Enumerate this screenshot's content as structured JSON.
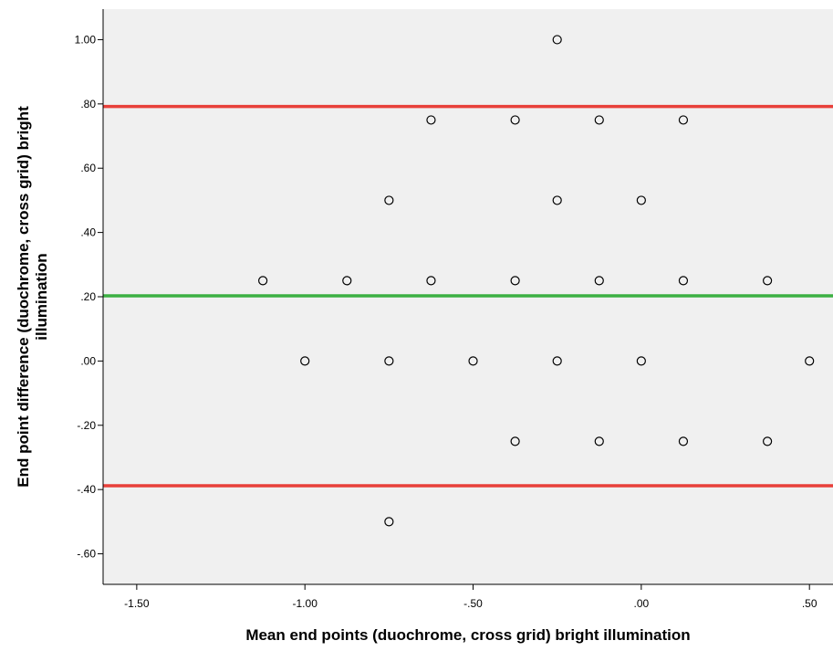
{
  "chart_data": {
    "type": "scatter",
    "title": "",
    "xlabel": "Mean end points (duochrome, cross grid) bright illumination",
    "ylabel_lines": [
      "End point difference (duochrome, cross grid) bright",
      "illumination"
    ],
    "xlim": [
      -1.6,
      0.57
    ],
    "ylim": [
      -0.695,
      1.095
    ],
    "x_ticks": [
      -1.5,
      -1.0,
      -0.5,
      0.0,
      0.5
    ],
    "x_tick_labels": [
      "-1.50",
      "-1.00",
      "-.50",
      ".00",
      ".50"
    ],
    "y_ticks": [
      1.0,
      0.8,
      0.6,
      0.4,
      0.2,
      0.0,
      -0.2,
      -0.4,
      -0.6
    ],
    "y_tick_labels": [
      "1.00",
      ".80",
      ".60",
      ".40",
      ".20",
      ".00",
      "-.20",
      "-.40",
      "-.60"
    ],
    "grid": false,
    "reference_lines": [
      {
        "y": 0.792,
        "color": "#e8403a"
      },
      {
        "y": 0.203,
        "color": "#3cb043"
      },
      {
        "y": -0.388,
        "color": "#e8403a"
      }
    ],
    "points": [
      {
        "x": -0.25,
        "y": 1.0
      },
      {
        "x": -0.625,
        "y": 0.75
      },
      {
        "x": -0.375,
        "y": 0.75
      },
      {
        "x": -0.125,
        "y": 0.75
      },
      {
        "x": 0.125,
        "y": 0.75
      },
      {
        "x": -0.75,
        "y": 0.5
      },
      {
        "x": -0.25,
        "y": 0.5
      },
      {
        "x": 0.0,
        "y": 0.5
      },
      {
        "x": -1.125,
        "y": 0.25
      },
      {
        "x": -0.875,
        "y": 0.25
      },
      {
        "x": -0.625,
        "y": 0.25
      },
      {
        "x": -0.375,
        "y": 0.25
      },
      {
        "x": -0.125,
        "y": 0.25
      },
      {
        "x": 0.125,
        "y": 0.25
      },
      {
        "x": 0.375,
        "y": 0.25
      },
      {
        "x": -1.0,
        "y": 0.0
      },
      {
        "x": -0.75,
        "y": 0.0
      },
      {
        "x": -0.5,
        "y": 0.0
      },
      {
        "x": -0.25,
        "y": 0.0
      },
      {
        "x": 0.0,
        "y": 0.0
      },
      {
        "x": 0.5,
        "y": 0.0
      },
      {
        "x": -0.375,
        "y": -0.25
      },
      {
        "x": -0.125,
        "y": -0.25
      },
      {
        "x": 0.125,
        "y": -0.25
      },
      {
        "x": 0.375,
        "y": -0.25
      },
      {
        "x": -0.75,
        "y": -0.5
      }
    ],
    "colors": {
      "plot_background": "#f0f0f0",
      "marker_stroke": "#000000",
      "axis": "#000000"
    }
  }
}
